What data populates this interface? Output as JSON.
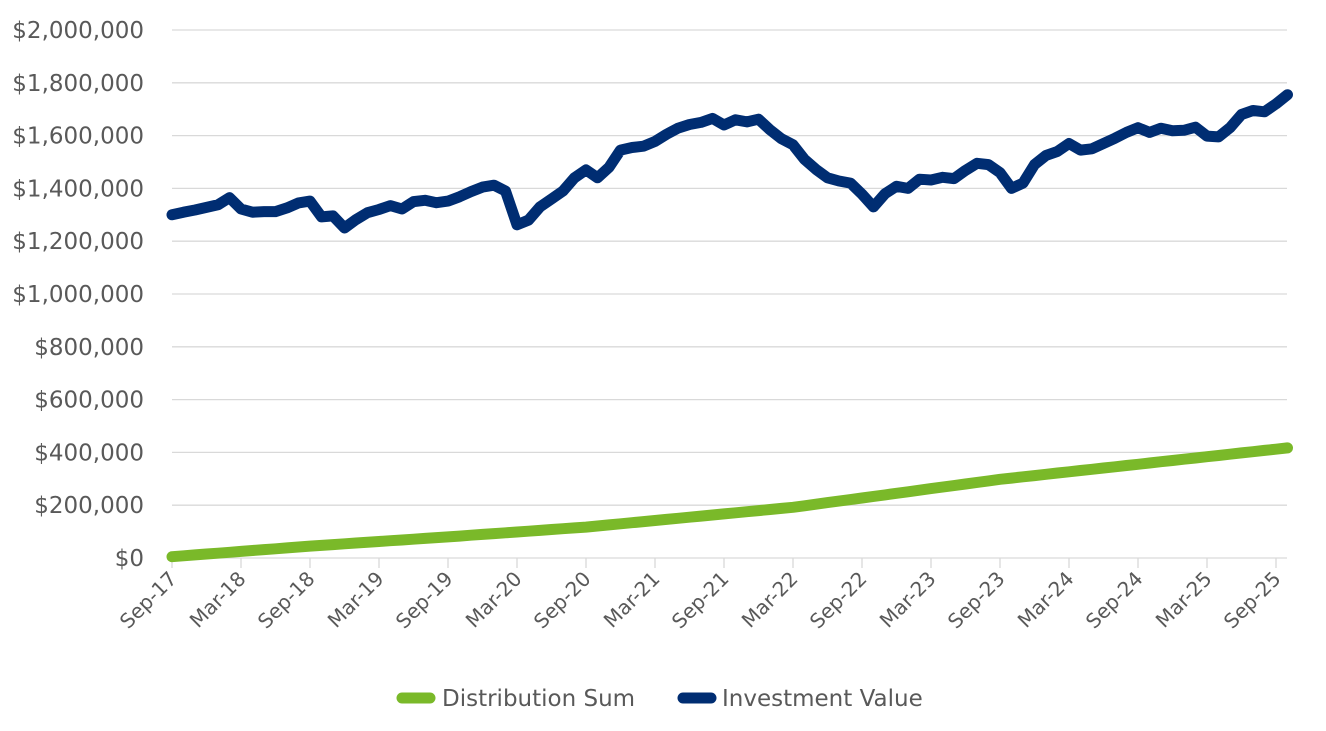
{
  "chart_data": {
    "type": "line",
    "title": "",
    "xlabel": "",
    "ylabel": "",
    "ylim": [
      0,
      2000000
    ],
    "ytick_step": 200000,
    "yticks": [
      "$0",
      "$200,000",
      "$400,000",
      "$600,000",
      "$800,000",
      "$1,000,000",
      "$1,200,000",
      "$1,400,000",
      "$1,600,000",
      "$1,800,000",
      "$2,000,000"
    ],
    "x_start": "Sep-17",
    "x_months": 98,
    "xtick_every_months": 6,
    "xticks": [
      "Sep-17",
      "Mar-18",
      "Sep-18",
      "Mar-19",
      "Sep-19",
      "Mar-20",
      "Sep-20",
      "Mar-21",
      "Sep-21",
      "Mar-22",
      "Sep-22",
      "Mar-23",
      "Sep-23",
      "Mar-24",
      "Sep-24",
      "Mar-25",
      "Sep-25"
    ],
    "grid": true,
    "legend_position": "bottom",
    "series": [
      {
        "name": "Distribution Sum",
        "color": "#7ab929",
        "values": [
          5000,
          8300,
          11700,
          15000,
          18300,
          21700,
          25000,
          28300,
          31700,
          35000,
          38300,
          41700,
          45000,
          47900,
          50800,
          53800,
          56700,
          59600,
          62500,
          65400,
          68300,
          71300,
          74200,
          77100,
          80000,
          83100,
          86200,
          89300,
          92300,
          95400,
          98500,
          101600,
          104700,
          107800,
          110800,
          113900,
          117000,
          121200,
          125300,
          129500,
          133700,
          137800,
          142000,
          146200,
          150300,
          154500,
          158700,
          162800,
          167000,
          171200,
          175300,
          179500,
          183700,
          187800,
          192000,
          197900,
          203800,
          209700,
          215600,
          221400,
          227300,
          233200,
          239100,
          245000,
          250900,
          256800,
          262700,
          268600,
          274400,
          280300,
          286200,
          292100,
          298000,
          302800,
          307500,
          312300,
          317000,
          321800,
          326600,
          331300,
          336100,
          340800,
          345600,
          350400,
          355100,
          359900,
          364600,
          369400,
          374200,
          378900,
          383700,
          388400,
          393200,
          398000,
          402700,
          407500,
          412200,
          417000
        ]
      },
      {
        "name": "Investment Value",
        "color": "#002d72",
        "values": [
          1300000,
          1310000,
          1318000,
          1328000,
          1338000,
          1365000,
          1322000,
          1310000,
          1312000,
          1312000,
          1326000,
          1345000,
          1352000,
          1292000,
          1296000,
          1250000,
          1282000,
          1308000,
          1320000,
          1335000,
          1322000,
          1350000,
          1355000,
          1346000,
          1352000,
          1368000,
          1388000,
          1405000,
          1412000,
          1390000,
          1262000,
          1280000,
          1330000,
          1360000,
          1390000,
          1440000,
          1470000,
          1440000,
          1480000,
          1545000,
          1555000,
          1560000,
          1578000,
          1605000,
          1628000,
          1642000,
          1650000,
          1665000,
          1640000,
          1660000,
          1652000,
          1662000,
          1622000,
          1588000,
          1565000,
          1510000,
          1472000,
          1440000,
          1428000,
          1420000,
          1378000,
          1330000,
          1380000,
          1408000,
          1400000,
          1435000,
          1432000,
          1442000,
          1437000,
          1468000,
          1495000,
          1490000,
          1460000,
          1400000,
          1420000,
          1490000,
          1525000,
          1540000,
          1570000,
          1545000,
          1550000,
          1570000,
          1590000,
          1612000,
          1630000,
          1612000,
          1628000,
          1618000,
          1620000,
          1632000,
          1598000,
          1595000,
          1630000,
          1680000,
          1695000,
          1690000,
          1720000,
          1755000
        ]
      }
    ]
  }
}
